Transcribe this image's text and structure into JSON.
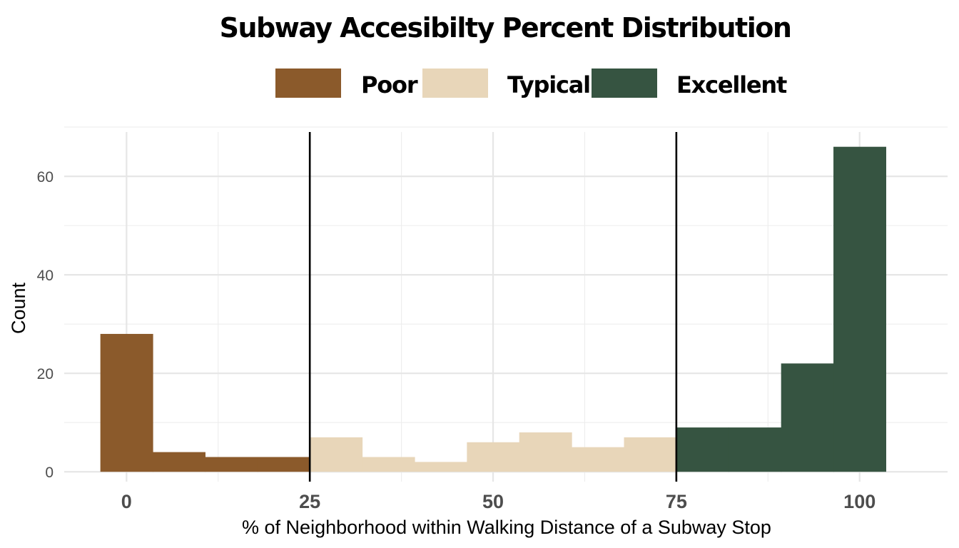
{
  "chart_data": {
    "type": "bar",
    "title": "Subway Accesibilty Percent Distribution",
    "xlabel": "% of Neighborhood within Walking Distance of a Subway Stop",
    "ylabel": "Count",
    "xlim": [
      -8.5,
      112
    ],
    "ylim": [
      -2,
      69
    ],
    "x_ticks": [
      0,
      25,
      50,
      75,
      100
    ],
    "y_ticks": [
      0,
      20,
      40,
      60
    ],
    "x_tick_labels": [
      "0",
      "25",
      "50",
      "75",
      "100"
    ],
    "y_tick_labels": [
      "0",
      "20",
      "40",
      "60"
    ],
    "grid": true,
    "legend_position": "top",
    "series": [
      {
        "name": "Poor",
        "color": "#8B5A2B",
        "bins": [
          {
            "x0": -3.57,
            "x1": 3.57,
            "y": 28
          },
          {
            "x0": 3.57,
            "x1": 10.71,
            "y": 4
          },
          {
            "x0": 10.71,
            "x1": 17.86,
            "y": 3
          },
          {
            "x0": 17.86,
            "x1": 25.0,
            "y": 3
          }
        ]
      },
      {
        "name": "Typical",
        "color": "#E8D6B9",
        "bins": [
          {
            "x0": 25.0,
            "x1": 32.14,
            "y": 7
          },
          {
            "x0": 32.14,
            "x1": 39.29,
            "y": 3
          },
          {
            "x0": 39.29,
            "x1": 46.43,
            "y": 2
          },
          {
            "x0": 46.43,
            "x1": 53.57,
            "y": 6
          },
          {
            "x0": 53.57,
            "x1": 60.71,
            "y": 8
          },
          {
            "x0": 60.71,
            "x1": 67.86,
            "y": 5
          },
          {
            "x0": 67.86,
            "x1": 75.0,
            "y": 7
          }
        ]
      },
      {
        "name": "Excellent",
        "color": "#365441",
        "bins": [
          {
            "x0": 75.0,
            "x1": 82.14,
            "y": 9
          },
          {
            "x0": 82.14,
            "x1": 89.29,
            "y": 9
          },
          {
            "x0": 89.29,
            "x1": 96.43,
            "y": 22
          },
          {
            "x0": 96.43,
            "x1": 103.57,
            "y": 66
          }
        ]
      }
    ],
    "vlines": [
      25,
      75
    ]
  }
}
